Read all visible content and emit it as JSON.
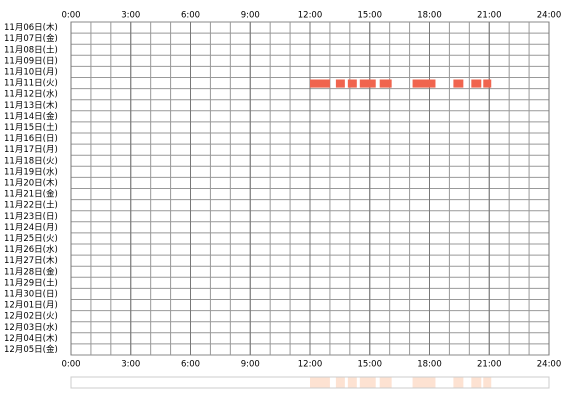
{
  "chart_data": {
    "type": "timeline",
    "xlim": [
      0,
      24
    ],
    "xticks": [
      {
        "value": 0,
        "label": "0:00"
      },
      {
        "value": 3,
        "label": "3:00"
      },
      {
        "value": 6,
        "label": "6:00"
      },
      {
        "value": 9,
        "label": "9:00"
      },
      {
        "value": 12,
        "label": "12:00"
      },
      {
        "value": 15,
        "label": "15:00"
      },
      {
        "value": 18,
        "label": "18:00"
      },
      {
        "value": 21,
        "label": "21:00"
      },
      {
        "value": 24,
        "label": "24:00"
      }
    ],
    "color": "#f0644e",
    "overview_color": "#fde2d2",
    "grid": true,
    "rows": [
      {
        "label": "11月06日(木)",
        "segments": []
      },
      {
        "label": "11月07日(金)",
        "segments": []
      },
      {
        "label": "11月08日(土)",
        "segments": []
      },
      {
        "label": "11月09日(日)",
        "segments": []
      },
      {
        "label": "11月10日(月)",
        "segments": []
      },
      {
        "label": "11月11日(火)",
        "segments": [
          [
            12.0,
            13.0
          ],
          [
            13.3,
            13.75
          ],
          [
            13.9,
            14.35
          ],
          [
            14.5,
            15.3
          ],
          [
            15.5,
            16.1
          ],
          [
            17.15,
            18.3
          ],
          [
            19.2,
            19.7
          ],
          [
            20.1,
            20.6
          ],
          [
            20.7,
            21.1
          ]
        ]
      },
      {
        "label": "11月12日(水)",
        "segments": []
      },
      {
        "label": "11月13日(木)",
        "segments": []
      },
      {
        "label": "11月14日(金)",
        "segments": []
      },
      {
        "label": "11月15日(土)",
        "segments": []
      },
      {
        "label": "11月16日(日)",
        "segments": []
      },
      {
        "label": "11月17日(月)",
        "segments": []
      },
      {
        "label": "11月18日(火)",
        "segments": []
      },
      {
        "label": "11月19日(水)",
        "segments": []
      },
      {
        "label": "11月20日(木)",
        "segments": []
      },
      {
        "label": "11月21日(金)",
        "segments": []
      },
      {
        "label": "11月22日(土)",
        "segments": []
      },
      {
        "label": "11月23日(日)",
        "segments": []
      },
      {
        "label": "11月24日(月)",
        "segments": []
      },
      {
        "label": "11月25日(火)",
        "segments": []
      },
      {
        "label": "11月26日(水)",
        "segments": []
      },
      {
        "label": "11月27日(木)",
        "segments": []
      },
      {
        "label": "11月28日(金)",
        "segments": []
      },
      {
        "label": "11月29日(土)",
        "segments": []
      },
      {
        "label": "11月30日(日)",
        "segments": []
      },
      {
        "label": "12月01日(月)",
        "segments": []
      },
      {
        "label": "12月02日(火)",
        "segments": []
      },
      {
        "label": "12月03日(水)",
        "segments": []
      },
      {
        "label": "12月04日(木)",
        "segments": []
      },
      {
        "label": "12月05日(金)",
        "segments": []
      }
    ]
  }
}
